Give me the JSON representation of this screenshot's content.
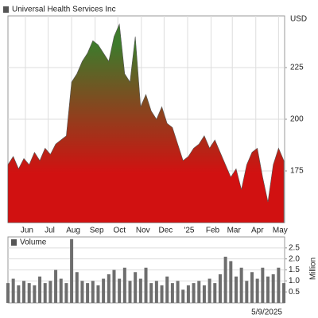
{
  "chart_data": [
    {
      "type": "area",
      "title": "Universal Health Services Inc",
      "y_label": "USD",
      "x": [
        0,
        7,
        14,
        21,
        28,
        35,
        42,
        49,
        56,
        63,
        70,
        77,
        84,
        91,
        98,
        105,
        112,
        119,
        126,
        133,
        140,
        147,
        154,
        161,
        168,
        175,
        182,
        189,
        196,
        203,
        210,
        217,
        224,
        231,
        238,
        245,
        252,
        259,
        266,
        273,
        280,
        287,
        294,
        301,
        308,
        315,
        322,
        329,
        336,
        343,
        350,
        357,
        364
      ],
      "values": [
        178,
        182,
        176,
        181,
        178,
        184,
        180,
        186,
        183,
        188,
        190,
        192,
        218,
        222,
        228,
        232,
        238,
        236,
        232,
        228,
        240,
        246,
        222,
        218,
        240,
        206,
        212,
        204,
        200,
        206,
        198,
        196,
        188,
        180,
        182,
        186,
        188,
        192,
        186,
        190,
        184,
        178,
        172,
        176,
        166,
        178,
        184,
        186,
        172,
        160,
        178,
        186,
        180
      ],
      "xlim": [
        0,
        365
      ],
      "xticks": [
        {
          "value": 23,
          "label": "Jun"
        },
        {
          "value": 53,
          "label": "Jul"
        },
        {
          "value": 84,
          "label": "Aug"
        },
        {
          "value": 115,
          "label": "Sep"
        },
        {
          "value": 145,
          "label": "Oct"
        },
        {
          "value": 176,
          "label": "Nov"
        },
        {
          "value": 206,
          "label": "Dec"
        },
        {
          "value": 237,
          "label": "'25"
        },
        {
          "value": 268,
          "label": "Feb"
        },
        {
          "value": 296,
          "label": "Mar"
        },
        {
          "value": 327,
          "label": "Apr"
        },
        {
          "value": 357,
          "label": "May"
        }
      ],
      "ylim": [
        150,
        250
      ],
      "yticks": [
        175,
        200,
        225
      ],
      "grid": true,
      "gradient": [
        "#3e7a2c",
        "#d11111"
      ]
    },
    {
      "type": "bar",
      "title": "Volume",
      "y_label": "Million",
      "date_label": "5/9/2025",
      "x": [
        0,
        7,
        14,
        21,
        28,
        35,
        42,
        49,
        56,
        63,
        70,
        77,
        84,
        91,
        98,
        105,
        112,
        119,
        126,
        133,
        140,
        147,
        154,
        161,
        168,
        175,
        182,
        189,
        196,
        203,
        210,
        217,
        224,
        231,
        238,
        245,
        252,
        259,
        266,
        273,
        280,
        287,
        294,
        301,
        308,
        315,
        322,
        329,
        336,
        343,
        350,
        357,
        364
      ],
      "values": [
        0.9,
        1.1,
        0.8,
        1.0,
        0.9,
        0.8,
        1.2,
        0.9,
        1.0,
        1.5,
        1.1,
        0.9,
        2.9,
        1.4,
        1.0,
        0.9,
        1.0,
        0.8,
        1.1,
        1.3,
        1.5,
        1.1,
        1.6,
        1.0,
        1.4,
        1.1,
        1.6,
        0.9,
        1.0,
        0.8,
        1.2,
        0.9,
        1.0,
        0.6,
        0.8,
        0.9,
        1.0,
        0.8,
        1.1,
        0.9,
        1.3,
        2.1,
        1.9,
        1.2,
        1.6,
        1.0,
        1.4,
        1.1,
        1.6,
        1.2,
        1.3,
        1.6,
        0.9
      ],
      "xlim": [
        0,
        365
      ],
      "ylim": [
        0,
        3
      ],
      "yticks": [
        {
          "value": 0.5,
          "label": "0.5"
        },
        {
          "value": 1,
          "label": "1.0"
        },
        {
          "value": 1.5,
          "label": "1.5"
        },
        {
          "value": 2,
          "label": "2.0"
        },
        {
          "value": 2.5,
          "label": "2.5"
        }
      ],
      "grid": true,
      "color": "#6e6e6e"
    }
  ]
}
